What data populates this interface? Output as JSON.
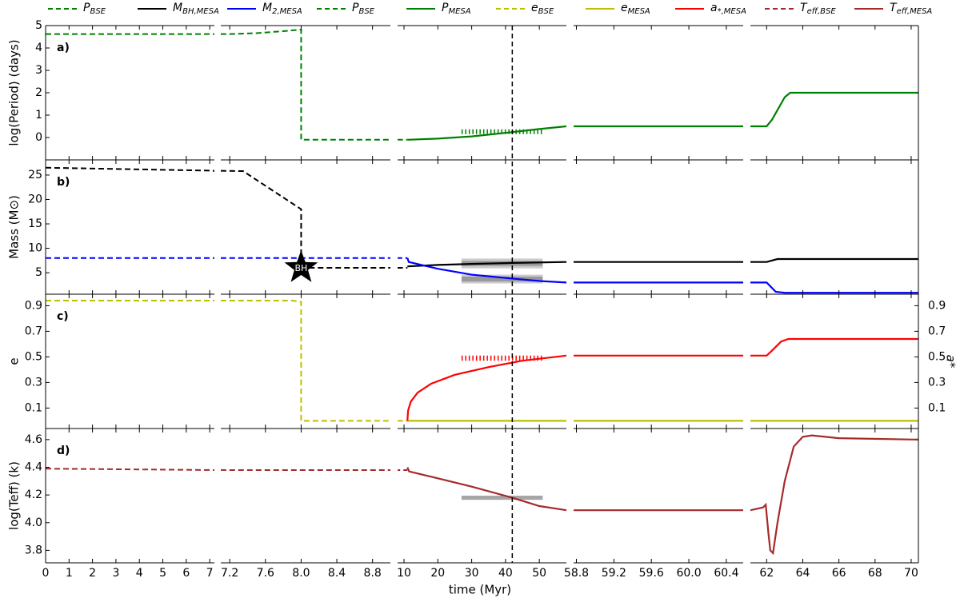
{
  "chart_data": {
    "type": "line",
    "xlabel": "time (Myr)",
    "legend": [
      {
        "name": "P",
        "sub": "BSE",
        "color": "#008000",
        "dash": true
      },
      {
        "name": "M",
        "sub": "BH,MESA",
        "color": "#000000",
        "dash": false
      },
      {
        "name": "M",
        "sub": "2,MESA",
        "color": "#0000ff",
        "dash": false
      },
      {
        "name": "P",
        "sub": "BSE",
        "color": "#008000",
        "dash": true
      },
      {
        "name": "P",
        "sub": "MESA",
        "color": "#008000",
        "dash": false
      },
      {
        "name": "e",
        "sub": "BSE",
        "color": "#bfbf00",
        "dash": true
      },
      {
        "name": "e",
        "sub": "MESA",
        "color": "#bfbf00",
        "dash": false
      },
      {
        "name": "a",
        "sub": "*,MESA",
        "color": "#ff0000",
        "dash": false
      },
      {
        "name": "T",
        "sub": "eff,BSE",
        "color": "#a52a2a",
        "dash": true
      },
      {
        "name": "T",
        "sub": "eff,MESA",
        "color": "#a52a2a",
        "dash": false
      }
    ],
    "columns": [
      {
        "xlim": [
          0,
          7.2
        ],
        "xticks": [
          0,
          1,
          2,
          3,
          4,
          5,
          6,
          7
        ]
      },
      {
        "xlim": [
          7.1,
          9.0
        ],
        "xticks": [
          7.2,
          7.6,
          {
            "value": 8,
            "label": "8.0"
          },
          8.4,
          8.8
        ]
      },
      {
        "xlim": [
          8.1,
          58
        ],
        "xticks": [
          10,
          20,
          30,
          40,
          50
        ]
      },
      {
        "xlim": [
          58.77,
          60.58
        ],
        "xticks": [
          58.8,
          59.2,
          59.6,
          {
            "value": 60,
            "label": "60.0"
          },
          60.4
        ]
      },
      {
        "xlim": [
          61.1,
          70.4
        ],
        "xticks": [
          62,
          64,
          66,
          68,
          70
        ]
      }
    ],
    "vline": 42,
    "panels": [
      {
        "label": "a)",
        "ylabel": "log(Period) (days)",
        "ylim": [
          -1,
          5
        ],
        "yticks": [
          0,
          1,
          2,
          3,
          4,
          5
        ],
        "series": [
          {
            "color": "#008000",
            "dash": true,
            "x": [
              0,
              7.2,
              7.5,
              7.8,
              8.0,
              8.0,
              9.0,
              11
            ],
            "values": [
              4.62,
              4.62,
              4.66,
              4.75,
              4.82,
              -0.1,
              -0.1,
              -0.1
            ]
          },
          {
            "color": "#008000",
            "dash": false,
            "x": [
              11,
              20,
              30,
              42,
              50,
              58,
              60.58,
              62.0,
              62.3,
              63.0,
              63.3,
              70.4
            ],
            "values": [
              -0.1,
              -0.05,
              0.05,
              0.24,
              0.38,
              0.5,
              0.5,
              0.5,
              0.8,
              1.8,
              2.0,
              2.0
            ]
          }
        ],
        "bands": [
          {
            "x": [
              27,
              51
            ],
            "value": 0.26,
            "error": 0.06,
            "color": "#008000",
            "style": "hatch"
          }
        ]
      },
      {
        "label": "b)",
        "ylabel": "Mass (M⊙)",
        "ylim": [
          0.6,
          28.1
        ],
        "yticks": [
          5,
          10,
          15,
          20,
          25
        ],
        "series": [
          {
            "color": "#000000",
            "dash": true,
            "x": [
              0,
              7.0,
              7.35,
              8.0,
              8.0,
              9.0,
              11
            ],
            "values": [
              26.5,
              25.9,
              25.8,
              18,
              6,
              6,
              6
            ]
          },
          {
            "color": "#0000ff",
            "dash": true,
            "x": [
              0,
              11
            ],
            "values": [
              8.0,
              8.0
            ]
          },
          {
            "color": "#000000",
            "dash": false,
            "x": [
              11,
              20,
              30,
              42,
              58,
              60.58,
              62.0,
              62.6,
              70.4
            ],
            "values": [
              6.3,
              6.6,
              6.8,
              7.0,
              7.2,
              7.2,
              7.2,
              7.8,
              7.8
            ]
          },
          {
            "color": "#0000ff",
            "dash": false,
            "x": [
              11,
              11.4,
              20,
              30,
              42,
              50,
              58,
              60.58,
              62.0,
              62.5,
              63.0,
              70.4
            ],
            "values": [
              8.0,
              7.2,
              5.8,
              4.6,
              3.8,
              3.3,
              3.0,
              3.0,
              3.0,
              1.1,
              0.9,
              0.9
            ]
          }
        ],
        "bands": [
          {
            "x": [
              27,
              51
            ],
            "value": 6.9,
            "error": 1.0,
            "color": "#bbbbbb",
            "style": "fill"
          },
          {
            "x": [
              27,
              51
            ],
            "value": 6.9,
            "error": 0.5,
            "color": "#888888",
            "style": "fill"
          },
          {
            "x": [
              27,
              51
            ],
            "value": 3.7,
            "error": 0.9,
            "color": "#bbbbbb",
            "style": "fill"
          },
          {
            "x": [
              27,
              51
            ],
            "value": 3.7,
            "error": 0.5,
            "color": "#888888",
            "style": "fill"
          }
        ],
        "marker": {
          "label": "BH",
          "x": 8.0,
          "y": 6
        }
      },
      {
        "label": "c)",
        "ylabel": "e",
        "ylim": [
          -0.06,
          0.99
        ],
        "yticks": [
          0.1,
          0.3,
          0.5,
          0.7,
          0.9
        ],
        "y2label": "a*",
        "y2lim": [
          -0.06,
          0.99
        ],
        "y2ticks": [
          0.1,
          0.3,
          0.5,
          0.7,
          0.9
        ],
        "series": [
          {
            "color": "#bfbf00",
            "dash": true,
            "x": [
              0,
              7.9,
              8.0,
              8.0,
              9.0,
              11
            ],
            "values": [
              0.94,
              0.94,
              0.93,
              0.0,
              0.0,
              0.0
            ]
          },
          {
            "color": "#bfbf00",
            "dash": false,
            "x": [
              11,
              70.4
            ],
            "values": [
              0,
              0
            ]
          },
          {
            "color": "#ff0000",
            "dash": false,
            "axis": "y2",
            "x": [
              11,
              11.2,
              12,
              14,
              18,
              25,
              35,
              45,
              58,
              60.58,
              62.0,
              62.3,
              62.8,
              63.2,
              70.4
            ],
            "values": [
              0,
              0.08,
              0.15,
              0.22,
              0.29,
              0.36,
              0.42,
              0.47,
              0.51,
              0.51,
              0.51,
              0.55,
              0.62,
              0.64,
              0.64
            ]
          }
        ],
        "bands": [
          {
            "x": [
              27,
              51
            ],
            "value": 0.49,
            "error": 0.02,
            "color": "#ff0000",
            "style": "hatch",
            "axis": "y2"
          }
        ]
      },
      {
        "label": "d)",
        "ylabel": "log(Teff) (k)",
        "ylim": [
          3.71,
          4.68
        ],
        "yticks": [
          3.8,
          {
            "value": 4,
            "label": "4.0"
          },
          4.2,
          4.4,
          4.6
        ],
        "series": [
          {
            "color": "#a52a2a",
            "dash": true,
            "x": [
              0,
              7.2,
              9.0,
              11
            ],
            "values": [
              4.39,
              4.38,
              4.38,
              4.38
            ]
          },
          {
            "color": "#a52a2a",
            "dash": false,
            "x": [
              11,
              11.5,
              20,
              30,
              42,
              50,
              58,
              60.58,
              61.1,
              61.8,
              61.95,
              62.0,
              62.1,
              62.2,
              62.35,
              62.6,
              63.0,
              63.5,
              64.0,
              64.5,
              66,
              70.4
            ],
            "values": [
              4.4,
              4.37,
              4.32,
              4.26,
              4.18,
              4.12,
              4.09,
              4.09,
              4.09,
              4.11,
              4.13,
              4.06,
              3.92,
              3.8,
              3.78,
              4.0,
              4.3,
              4.55,
              4.62,
              4.63,
              4.61,
              4.6
            ]
          }
        ],
        "bands": [
          {
            "x": [
              27,
              51
            ],
            "value": 4.18,
            "error": 0.015,
            "color": "#888888",
            "style": "fill"
          }
        ]
      }
    ]
  }
}
